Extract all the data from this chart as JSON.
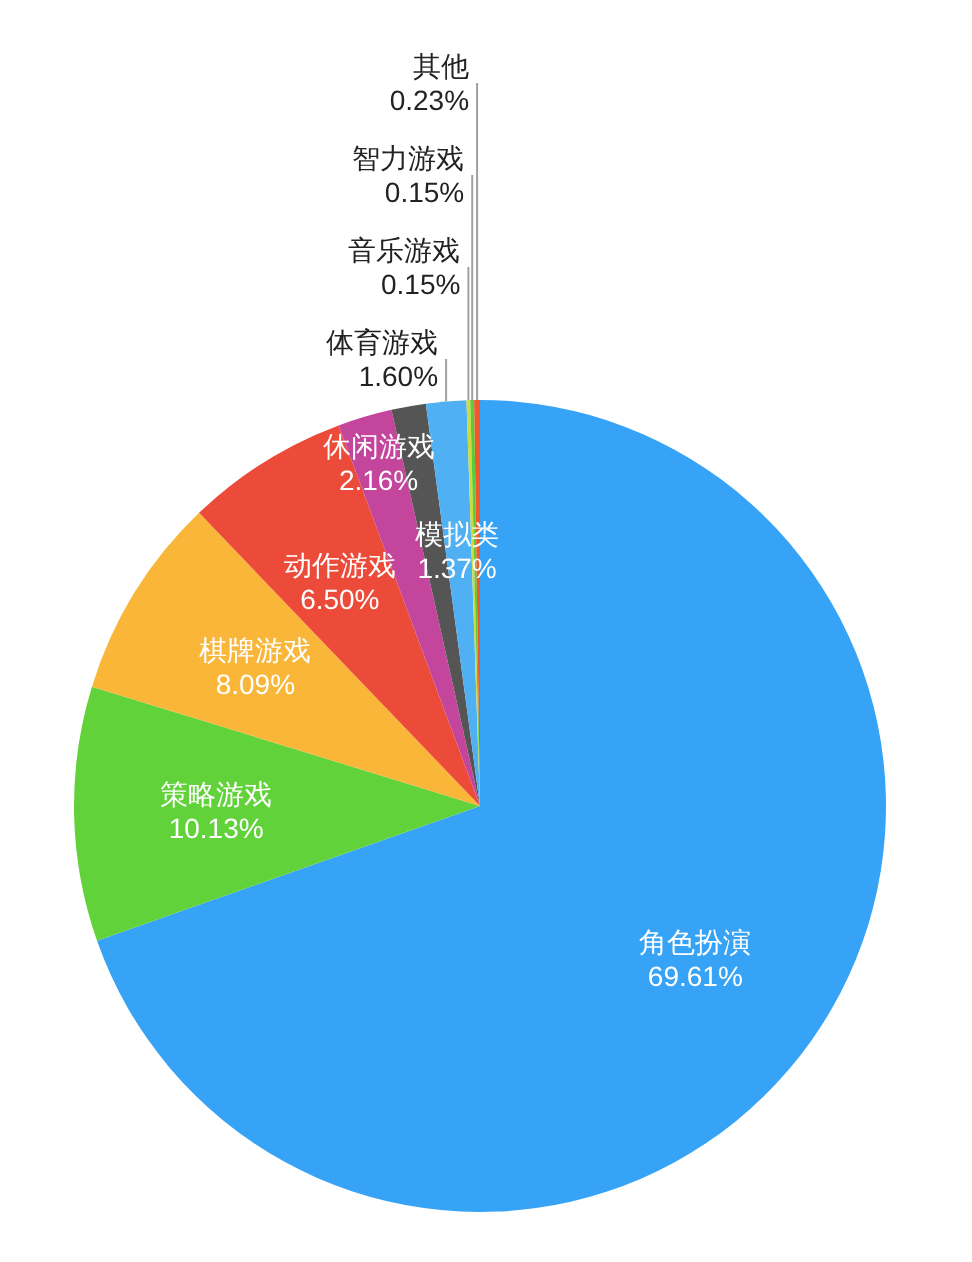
{
  "chart_data": {
    "type": "pie",
    "categories": [
      "角色扮演",
      "策略游戏",
      "棋牌游戏",
      "动作游戏",
      "休闲游戏",
      "模拟类",
      "体育游戏",
      "音乐游戏",
      "智力游戏",
      "其他"
    ],
    "values": [
      69.61,
      10.13,
      8.09,
      6.5,
      2.16,
      1.37,
      1.6,
      0.15,
      0.15,
      0.23
    ],
    "colors": [
      "#36a3f6",
      "#62d23b",
      "#f9b639",
      "#ed4b39",
      "#c4469c",
      "#555555",
      "#4fb0f4",
      "#cbdc3e",
      "#5ccb3b",
      "#f0572b"
    ],
    "value_labels": [
      "69.61%",
      "10.13%",
      "8.09%",
      "6.50%",
      "2.16%",
      "1.37%",
      "1.60%",
      "0.15%",
      "0.15%",
      "0.23%"
    ]
  }
}
